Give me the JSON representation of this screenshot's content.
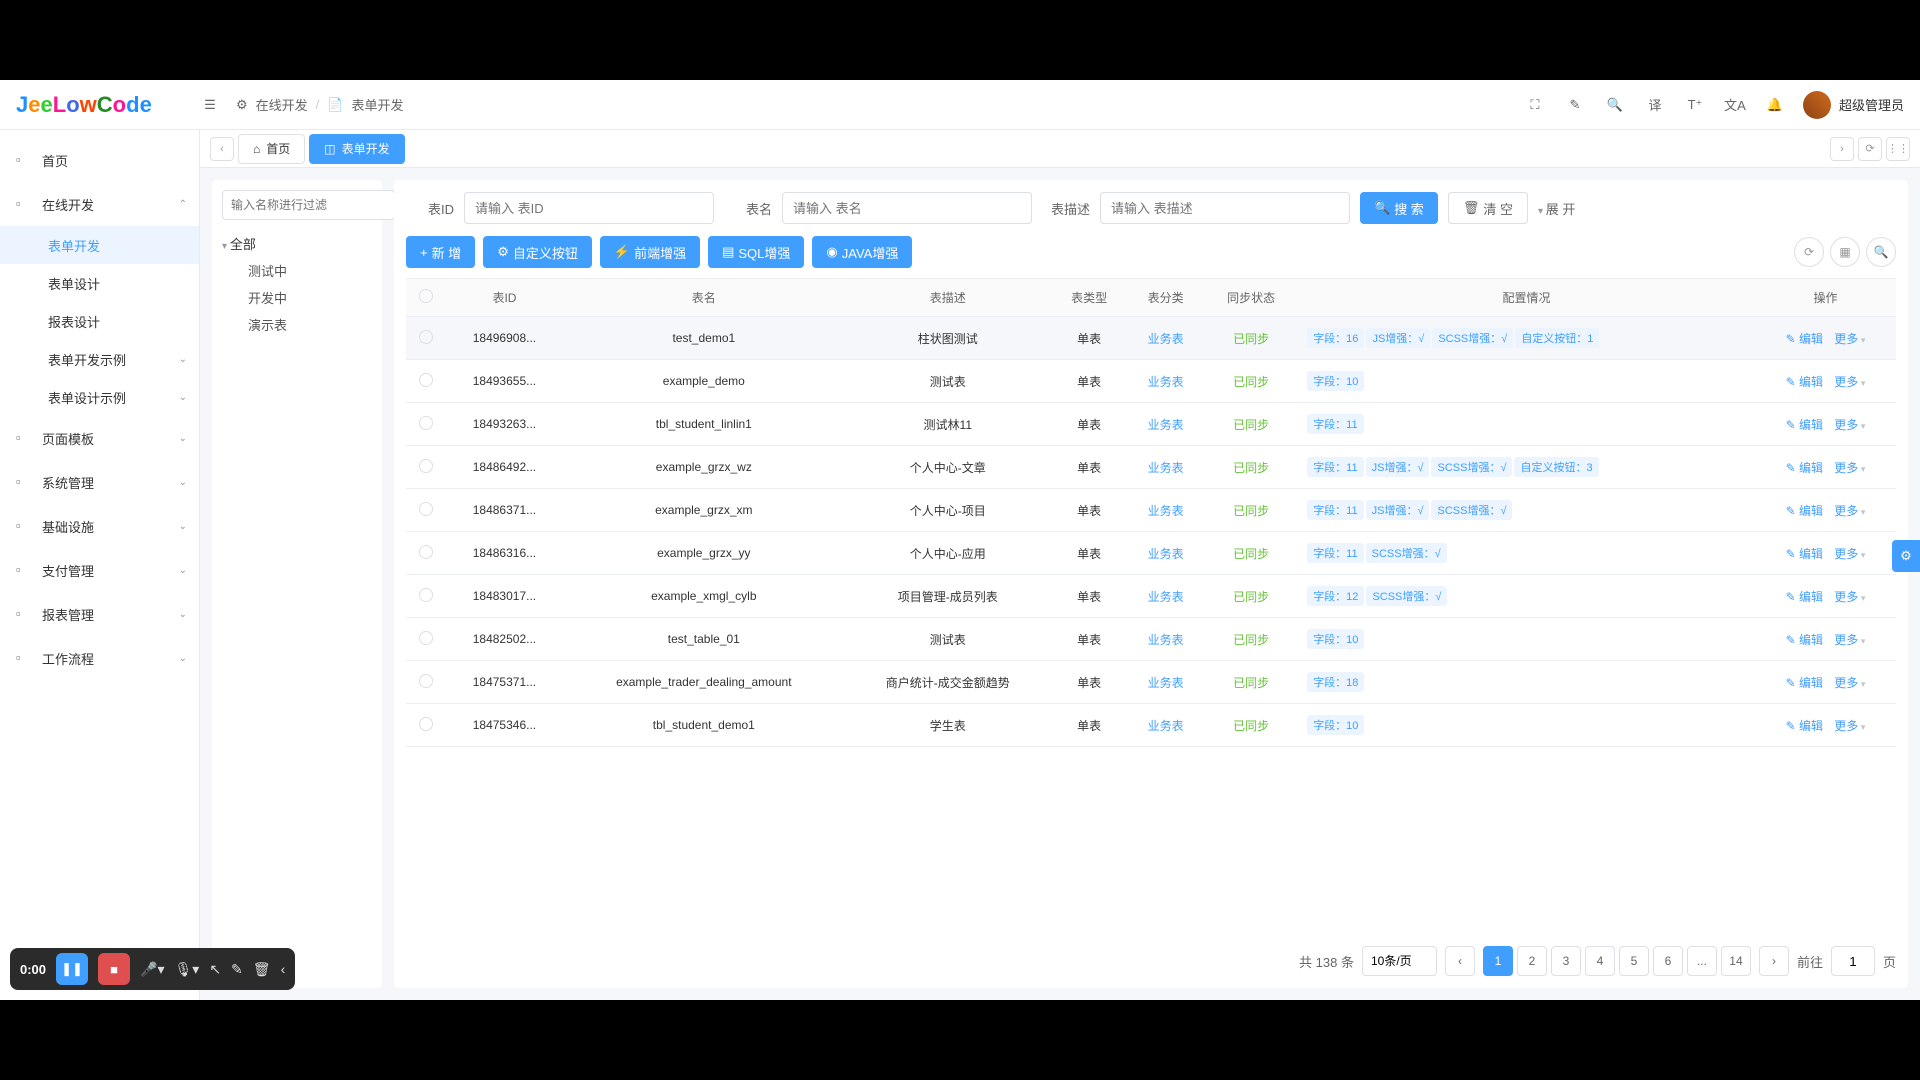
{
  "logo": "JeeLowCode",
  "breadcrumb": {
    "icon_label": "在线开发",
    "sep": "/",
    "page_label": "表单开发"
  },
  "header": {
    "username": "超级管理员"
  },
  "sidebar": {
    "items": [
      {
        "label": "首页",
        "icon": "home",
        "expandable": false
      },
      {
        "label": "在线开发",
        "icon": "dev",
        "expandable": true,
        "expanded": true,
        "children": [
          {
            "label": "表单开发",
            "active": true
          },
          {
            "label": "表单设计"
          },
          {
            "label": "报表设计"
          },
          {
            "label": "表单开发示例",
            "expandable": true
          },
          {
            "label": "表单设计示例",
            "expandable": true
          }
        ]
      },
      {
        "label": "页面模板",
        "icon": "tpl",
        "expandable": true
      },
      {
        "label": "系统管理",
        "icon": "sys",
        "expandable": true
      },
      {
        "label": "基础设施",
        "icon": "infra",
        "expandable": true
      },
      {
        "label": "支付管理",
        "icon": "pay",
        "expandable": true
      },
      {
        "label": "报表管理",
        "icon": "report",
        "expandable": true
      },
      {
        "label": "工作流程",
        "icon": "flow",
        "expandable": true
      }
    ]
  },
  "tabs": {
    "items": [
      {
        "label": "首页",
        "icon": "home"
      },
      {
        "label": "表单开发",
        "icon": "form",
        "active": true
      }
    ]
  },
  "tree": {
    "filter_placeholder": "输入名称进行过滤",
    "root_label": "全部",
    "children": [
      {
        "label": "测试中"
      },
      {
        "label": "开发中"
      },
      {
        "label": "演示表"
      }
    ]
  },
  "search": {
    "fields": [
      {
        "label": "表ID",
        "placeholder": "请输入 表ID"
      },
      {
        "label": "表名",
        "placeholder": "请输入 表名"
      },
      {
        "label": "表描述",
        "placeholder": "请输入 表描述"
      }
    ],
    "search_btn": "搜 索",
    "clear_btn": "清 空",
    "expand_btn": "展 开"
  },
  "toolbar": {
    "buttons": [
      {
        "label": "新 增",
        "style": "primary",
        "icon": "+"
      },
      {
        "label": "自定义按钮",
        "style": "primary",
        "icon": "⚙"
      },
      {
        "label": "前端增强",
        "style": "primary",
        "icon": "⚡"
      },
      {
        "label": "SQL增强",
        "style": "primary",
        "icon": "▤"
      },
      {
        "label": "JAVA增强",
        "style": "primary",
        "icon": "◉"
      }
    ]
  },
  "table": {
    "columns": [
      "",
      "表ID",
      "表名",
      "表描述",
      "表类型",
      "表分类",
      "同步状态",
      "配置情况",
      "操作"
    ],
    "op_edit": "编辑",
    "op_more": "更多",
    "rows": [
      {
        "id": "18496908...",
        "name": "test_demo1",
        "desc": "柱状图测试",
        "type": "单表",
        "cat": "业务表",
        "sync": "已同步",
        "tags": [
          "字段：16",
          "JS增强：√",
          "SCSS增强：√",
          "自定义按钮：1"
        ],
        "hover": true
      },
      {
        "id": "18493655...",
        "name": "example_demo",
        "desc": "测试表",
        "type": "单表",
        "cat": "业务表",
        "sync": "已同步",
        "tags": [
          "字段：10"
        ]
      },
      {
        "id": "18493263...",
        "name": "tbl_student_linlin1",
        "desc": "测试林11",
        "type": "单表",
        "cat": "业务表",
        "sync": "已同步",
        "tags": [
          "字段：11"
        ]
      },
      {
        "id": "18486492...",
        "name": "example_grzx_wz",
        "desc": "个人中心-文章",
        "type": "单表",
        "cat": "业务表",
        "sync": "已同步",
        "tags": [
          "字段：11",
          "JS增强：√",
          "SCSS增强：√",
          "自定义按钮：3"
        ]
      },
      {
        "id": "18486371...",
        "name": "example_grzx_xm",
        "desc": "个人中心-项目",
        "type": "单表",
        "cat": "业务表",
        "sync": "已同步",
        "tags": [
          "字段：11",
          "JS增强：√",
          "SCSS增强：√"
        ]
      },
      {
        "id": "18486316...",
        "name": "example_grzx_yy",
        "desc": "个人中心-应用",
        "type": "单表",
        "cat": "业务表",
        "sync": "已同步",
        "tags": [
          "字段：11",
          "SCSS增强：√"
        ]
      },
      {
        "id": "18483017...",
        "name": "example_xmgl_cylb",
        "desc": "项目管理-成员列表",
        "type": "单表",
        "cat": "业务表",
        "sync": "已同步",
        "tags": [
          "字段：12",
          "SCSS增强：√"
        ]
      },
      {
        "id": "18482502...",
        "name": "test_table_01",
        "desc": "测试表",
        "type": "单表",
        "cat": "业务表",
        "sync": "已同步",
        "tags": [
          "字段：10"
        ]
      },
      {
        "id": "18475371...",
        "name": "example_trader_dealing_amount",
        "desc": "商户统计-成交金额趋势",
        "type": "单表",
        "cat": "业务表",
        "sync": "已同步",
        "tags": [
          "字段：18"
        ]
      },
      {
        "id": "18475346...",
        "name": "tbl_student_demo1",
        "desc": "学生表",
        "type": "单表",
        "cat": "业务表",
        "sync": "已同步",
        "tags": [
          "字段：10"
        ]
      }
    ]
  },
  "pagination": {
    "total_label": "共 138 条",
    "page_size_label": "10条/页",
    "pages": [
      "1",
      "2",
      "3",
      "4",
      "5",
      "6",
      "...",
      "14"
    ],
    "current": "1",
    "goto_label": "前往",
    "goto_value": "1",
    "page_suffix": "页"
  },
  "recorder": {
    "time": "0:00"
  },
  "colors": {
    "primary": "#409eff",
    "success": "#67c23a",
    "danger": "#e04f4f",
    "border": "#e8eaec",
    "text": "#333333",
    "text_muted": "#666666",
    "tag_bg": "#ecf5ff",
    "hover_bg": "#f5f7fa",
    "body_bg": "#f5f7fa"
  }
}
